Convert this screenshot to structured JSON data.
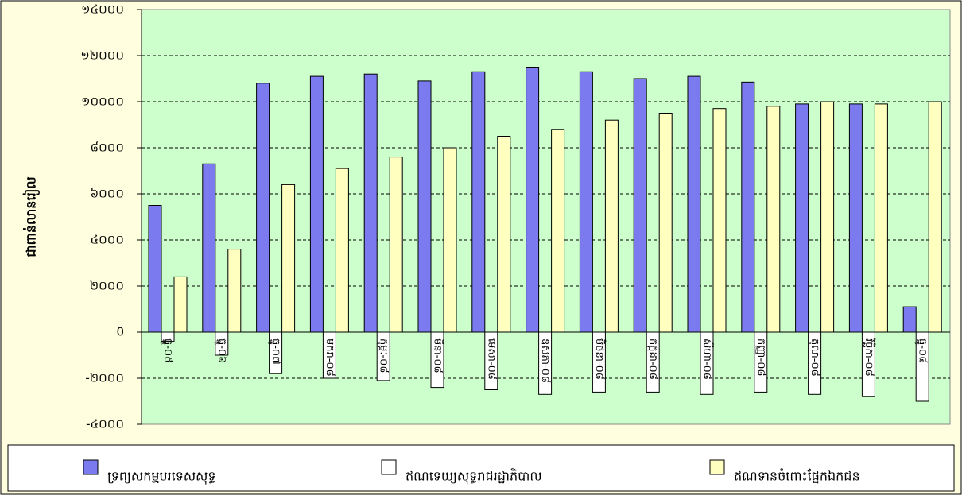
{
  "chart_data": {
    "type": "bar",
    "ylabel": "ជាពាន់លានរៀល",
    "categories": [
      "ធ្នូ-០៥",
      "ធ្នូ-០៦",
      "ធ្នូ-០៧",
      "មករា-០៨",
      "កុម្ភៈ-០៨",
      "មីនា-០៨",
      "មេសា-០៨",
      "ឧសភា-០៨",
      "មិថុនា-០៨",
      "កក្កដា-០៨",
      "សីហា-០៨",
      "កញ្ញា-០៨",
      "តុលា-០៨",
      "វិច្ឆិកា-០៨",
      "ធ្នូ-០៨"
    ],
    "series": [
      {
        "name": "ទ្រព្យសកម្មបរទេសសុទ្ធ",
        "color": "#7b7bef",
        "values": [
          5500,
          7300,
          10800,
          11100,
          11200,
          10900,
          11300,
          11500,
          11300,
          11000,
          11100,
          10850,
          9900,
          9900,
          1100
        ]
      },
      {
        "name": "ឥណទេយ្យសុទ្ធរាជរដ្ឋាភិបាល",
        "color": "#ffffff",
        "values": [
          -400,
          -1000,
          -1800,
          -2000,
          -2100,
          -2400,
          -2500,
          -2700,
          -2600,
          -2600,
          -2700,
          -2600,
          -2700,
          -2800,
          -3000
        ]
      },
      {
        "name": "ឥណទានចំពោះផ្នែកឯកជន",
        "color": "#ffffbf",
        "values": [
          2400,
          3600,
          6400,
          7100,
          7600,
          8000,
          8500,
          8800,
          9200,
          9500,
          9700,
          9800,
          10000,
          9900,
          10000
        ]
      }
    ],
    "ylim": [
      -4000,
      14000
    ],
    "yticks": [
      {
        "value": -4000,
        "label": "-៤០០០"
      },
      {
        "value": -2000,
        "label": "-២០០០"
      },
      0,
      {
        "value": 2000,
        "label": "២០០០"
      },
      {
        "value": 4000,
        "label": "៤០០០"
      },
      {
        "value": 6000,
        "label": "៦០០០"
      },
      {
        "value": 8000,
        "label": "៨០០០"
      },
      {
        "value": 10000,
        "label": "១០០០០"
      },
      {
        "value": 12000,
        "label": "១២០០០"
      },
      {
        "value": 14000,
        "label": "១៤០០០"
      }
    ],
    "grid": true
  }
}
